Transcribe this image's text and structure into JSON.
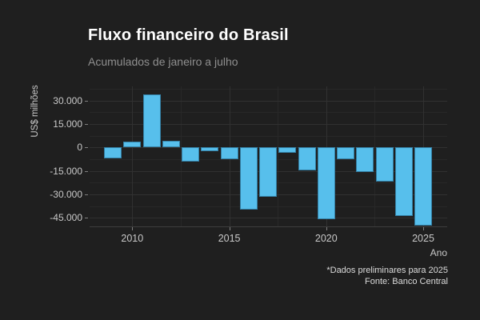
{
  "header": {
    "title": "Fluxo financeiro do Brasil",
    "subtitle": "Acumulados de janeiro a julho"
  },
  "chart_data": {
    "type": "bar",
    "title": "Fluxo financeiro do Brasil",
    "subtitle": "Acumulados de janeiro a julho",
    "xlabel": "Ano",
    "ylabel": "US$ milhões",
    "unit": "US$ milhões",
    "categories": [
      2009,
      2010,
      2011,
      2012,
      2013,
      2014,
      2015,
      2016,
      2017,
      2018,
      2019,
      2020,
      2021,
      2022,
      2023,
      2024,
      2025
    ],
    "values": [
      -7000,
      4000,
      34000,
      4500,
      -9000,
      -2500,
      -7500,
      -40000,
      -31500,
      -3500,
      -14500,
      -46000,
      -7500,
      -15500,
      -22000,
      -44000,
      -50000
    ],
    "yticks": [
      30000,
      15000,
      0,
      -15000,
      -30000,
      -45000
    ],
    "ytick_labels": [
      "30.000",
      "15.000",
      "0",
      "-15.000",
      "-30.000",
      "-45.000"
    ],
    "yticks_minor": [
      37500,
      22500,
      7500,
      -7500,
      -22500,
      -37500
    ],
    "xticks": [
      2010,
      2015,
      2020,
      2025
    ],
    "xticks_minor": [
      2012.5,
      2017.5,
      2022.5
    ],
    "ylim": [
      -52000,
      38000
    ],
    "grid": "on",
    "legend": "none",
    "bar_color": "#57bfec",
    "background_color": "#1f1f1f",
    "gridline_color": "#313131",
    "text_color": "#c9c9c9"
  },
  "footer": {
    "note": "*Dados preliminares para 2025",
    "source": "Fonte: Banco Central"
  }
}
